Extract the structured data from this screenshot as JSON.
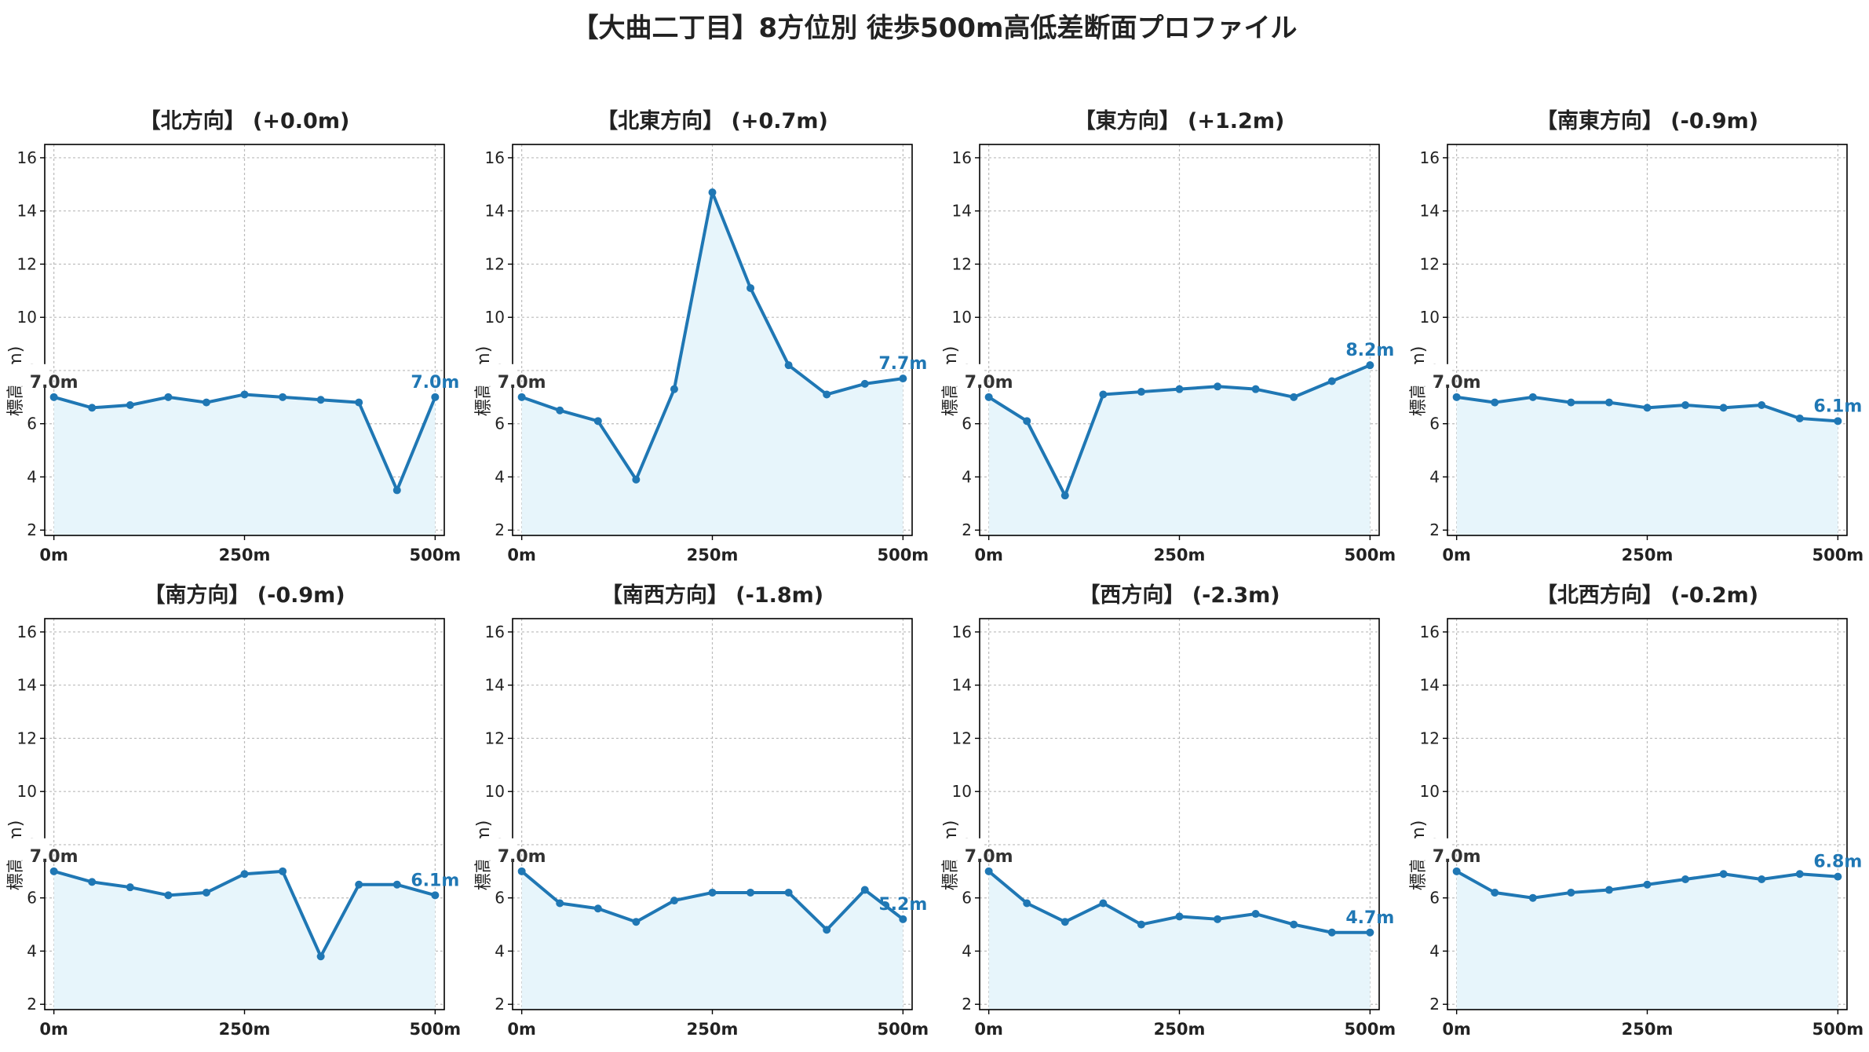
{
  "figure": {
    "title": "【大曲二丁目】8方位別 徒歩500m高低差断面プロファイル"
  },
  "style": {
    "line_color": "#1f77b4",
    "fill_color": "#e7f5fb",
    "label_start_color": "#333333",
    "label_end_color": "#1f77b4",
    "grid_color": "#bbbbbb",
    "axis_color": "#000000"
  },
  "chart_data": [
    {
      "type": "area",
      "title": "【北方向】 (+0.0m)",
      "x": [
        0,
        50,
        100,
        150,
        200,
        250,
        300,
        350,
        400,
        450,
        500
      ],
      "values": [
        7.0,
        6.6,
        6.7,
        7.0,
        6.8,
        7.1,
        7.0,
        6.9,
        6.8,
        3.5,
        7.0
      ],
      "x_ticks": [
        "0m",
        "250m",
        "500m"
      ],
      "y_ticks": [
        2,
        4,
        6,
        8,
        10,
        12,
        14,
        16
      ],
      "xlim": [
        -12,
        512
      ],
      "ylim": [
        1.8,
        16.5
      ],
      "ylabel": "標高 (m)",
      "start_label": "7.0m",
      "end_label": "7.0m",
      "grid": true
    },
    {
      "type": "area",
      "title": "【北東方向】 (+0.7m)",
      "x": [
        0,
        50,
        100,
        150,
        200,
        250,
        300,
        350,
        400,
        450,
        500
      ],
      "values": [
        7.0,
        6.5,
        6.1,
        3.9,
        7.3,
        14.7,
        11.1,
        8.2,
        7.1,
        7.5,
        7.7
      ],
      "x_ticks": [
        "0m",
        "250m",
        "500m"
      ],
      "y_ticks": [
        2,
        4,
        6,
        8,
        10,
        12,
        14,
        16
      ],
      "xlim": [
        -12,
        512
      ],
      "ylim": [
        1.8,
        16.5
      ],
      "ylabel": "標高 (m)",
      "start_label": "7.0m",
      "end_label": "7.7m",
      "grid": true
    },
    {
      "type": "area",
      "title": "【東方向】 (+1.2m)",
      "x": [
        0,
        50,
        100,
        150,
        200,
        250,
        300,
        350,
        400,
        450,
        500
      ],
      "values": [
        7.0,
        6.1,
        3.3,
        7.1,
        7.2,
        7.3,
        7.4,
        7.3,
        7.0,
        7.6,
        8.2
      ],
      "x_ticks": [
        "0m",
        "250m",
        "500m"
      ],
      "y_ticks": [
        2,
        4,
        6,
        8,
        10,
        12,
        14,
        16
      ],
      "xlim": [
        -12,
        512
      ],
      "ylim": [
        1.8,
        16.5
      ],
      "ylabel": "標高 (m)",
      "start_label": "7.0m",
      "end_label": "8.2m",
      "grid": true
    },
    {
      "type": "area",
      "title": "【南東方向】 (-0.9m)",
      "x": [
        0,
        50,
        100,
        150,
        200,
        250,
        300,
        350,
        400,
        450,
        500
      ],
      "values": [
        7.0,
        6.8,
        7.0,
        6.8,
        6.8,
        6.6,
        6.7,
        6.6,
        6.7,
        6.2,
        6.1
      ],
      "x_ticks": [
        "0m",
        "250m",
        "500m"
      ],
      "y_ticks": [
        2,
        4,
        6,
        8,
        10,
        12,
        14,
        16
      ],
      "xlim": [
        -12,
        512
      ],
      "ylim": [
        1.8,
        16.5
      ],
      "ylabel": "標高 (m)",
      "start_label": "7.0m",
      "end_label": "6.1m",
      "grid": true
    },
    {
      "type": "area",
      "title": "【南方向】 (-0.9m)",
      "x": [
        0,
        50,
        100,
        150,
        200,
        250,
        300,
        350,
        400,
        450,
        500
      ],
      "values": [
        7.0,
        6.6,
        6.4,
        6.1,
        6.2,
        6.9,
        7.0,
        3.8,
        6.5,
        6.5,
        6.1
      ],
      "x_ticks": [
        "0m",
        "250m",
        "500m"
      ],
      "y_ticks": [
        2,
        4,
        6,
        8,
        10,
        12,
        14,
        16
      ],
      "xlim": [
        -12,
        512
      ],
      "ylim": [
        1.8,
        16.5
      ],
      "ylabel": "標高 (m)",
      "start_label": "7.0m",
      "end_label": "6.1m",
      "grid": true
    },
    {
      "type": "area",
      "title": "【南西方向】 (-1.8m)",
      "x": [
        0,
        50,
        100,
        150,
        200,
        250,
        300,
        350,
        400,
        450,
        500
      ],
      "values": [
        7.0,
        5.8,
        5.6,
        5.1,
        5.9,
        6.2,
        6.2,
        6.2,
        4.8,
        6.3,
        5.2
      ],
      "x_ticks": [
        "0m",
        "250m",
        "500m"
      ],
      "y_ticks": [
        2,
        4,
        6,
        8,
        10,
        12,
        14,
        16
      ],
      "xlim": [
        -12,
        512
      ],
      "ylim": [
        1.8,
        16.5
      ],
      "ylabel": "標高 (m)",
      "start_label": "7.0m",
      "end_label": "5.2m",
      "grid": true
    },
    {
      "type": "area",
      "title": "【西方向】 (-2.3m)",
      "x": [
        0,
        50,
        100,
        150,
        200,
        250,
        300,
        350,
        400,
        450,
        500
      ],
      "values": [
        7.0,
        5.8,
        5.1,
        5.8,
        5.0,
        5.3,
        5.2,
        5.4,
        5.0,
        4.7,
        4.7
      ],
      "x_ticks": [
        "0m",
        "250m",
        "500m"
      ],
      "y_ticks": [
        2,
        4,
        6,
        8,
        10,
        12,
        14,
        16
      ],
      "xlim": [
        -12,
        512
      ],
      "ylim": [
        1.8,
        16.5
      ],
      "ylabel": "標高 (m)",
      "start_label": "7.0m",
      "end_label": "4.7m",
      "grid": true
    },
    {
      "type": "area",
      "title": "【北西方向】 (-0.2m)",
      "x": [
        0,
        50,
        100,
        150,
        200,
        250,
        300,
        350,
        400,
        450,
        500
      ],
      "values": [
        7.0,
        6.2,
        6.0,
        6.2,
        6.3,
        6.5,
        6.7,
        6.9,
        6.7,
        6.9,
        6.8
      ],
      "x_ticks": [
        "0m",
        "250m",
        "500m"
      ],
      "y_ticks": [
        2,
        4,
        6,
        8,
        10,
        12,
        14,
        16
      ],
      "xlim": [
        -12,
        512
      ],
      "ylim": [
        1.8,
        16.5
      ],
      "ylabel": "標高 (m)",
      "start_label": "7.0m",
      "end_label": "6.8m",
      "grid": true
    }
  ]
}
